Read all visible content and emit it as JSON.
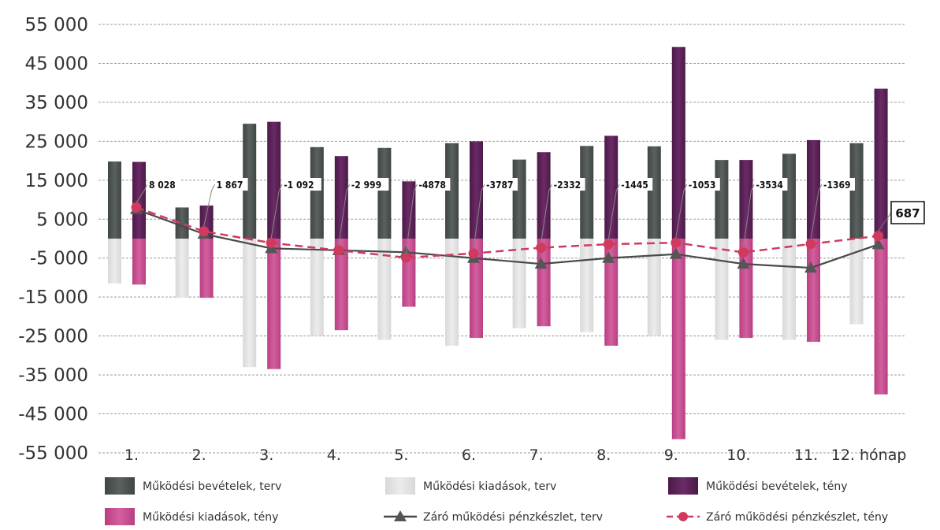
{
  "chart_data": {
    "type": "bar",
    "categories": [
      "1.",
      "2.",
      "3.",
      "4.",
      "5.",
      "6.",
      "7.",
      "8.",
      "9.",
      "10.",
      "11.",
      "12. hónap"
    ],
    "yticks": [
      "55 000",
      "45 000",
      "35 000",
      "25 000",
      "15 000",
      "5 000",
      "-5 000",
      "-15 000",
      "-25 000",
      "-35 000",
      "-45 000",
      "-55 000"
    ],
    "ylim": [
      -55000,
      55000
    ],
    "grid": "horizontal-dashed",
    "legend_position": "bottom",
    "series": [
      {
        "name": "Működési bevételek, terv",
        "kind": "bar",
        "color": "#4d5452",
        "values": [
          19800,
          8000,
          29500,
          23500,
          23300,
          24500,
          20300,
          23800,
          23700,
          20200,
          21800,
          24500
        ]
      },
      {
        "name": "Működési kiadások, terv",
        "kind": "bar",
        "color": "#e3e3e3",
        "values": [
          -11500,
          -15200,
          -33000,
          -25000,
          -26000,
          -27500,
          -23000,
          -24000,
          -25000,
          -26000,
          -26000,
          -22000
        ]
      },
      {
        "name": "Működési bevételek, tény",
        "kind": "bar",
        "color": "#5b2256",
        "values": [
          19700,
          8500,
          30000,
          21200,
          14700,
          25000,
          22200,
          26400,
          49200,
          20200,
          25300,
          38500
        ]
      },
      {
        "name": "Működési kiadások, tény",
        "kind": "bar",
        "color": "#c44b8e",
        "values": [
          -11800,
          -15200,
          -33500,
          -23500,
          -17500,
          -25500,
          -22500,
          -27500,
          -51500,
          -25500,
          -26500,
          -40000
        ]
      },
      {
        "name": "Záró működési pénzkészlet, terv",
        "kind": "line",
        "color": "#4a4a4a",
        "values": [
          7500,
          1200,
          -2500,
          -3000,
          -3500,
          -5000,
          -6500,
          -5000,
          -4000,
          -6500,
          -7500,
          -1500
        ]
      },
      {
        "name": "Záró működési pénzkészlet, tény",
        "kind": "line",
        "color": "#d03a5e",
        "values": [
          8028,
          1867,
          -1092,
          -2999,
          -4878,
          -3787,
          -2332,
          -1445,
          -1053,
          -3534,
          -1369,
          687
        ],
        "labels": [
          "8 028",
          "1 867",
          "-1 092",
          "-2 999",
          "-4878",
          "-3787",
          "-2332",
          "-1445",
          "-1053",
          "-3534",
          "-1369",
          "687"
        ]
      }
    ]
  }
}
